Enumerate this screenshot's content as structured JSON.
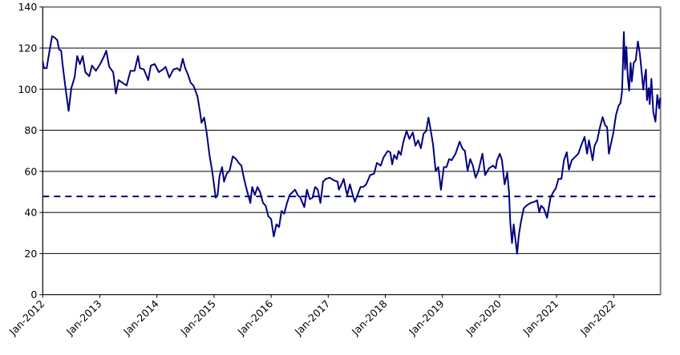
{
  "chart_data": {
    "type": "line",
    "title": "",
    "xlabel": "",
    "ylabel": "",
    "ylim": [
      0,
      140
    ],
    "xlim": [
      "2012-01-01",
      "2022-10-26"
    ],
    "y_ticks": [
      "0",
      "20",
      "40",
      "60",
      "80",
      "100",
      "120",
      "140"
    ],
    "x_ticks": [
      "Jan-2012",
      "Jan-2013",
      "Jan-2014",
      "Jan-2015",
      "Jan-2016",
      "Jan-2017",
      "Jan-2018",
      "Jan-2019",
      "Jan-2020",
      "Jan-2021",
      "Jan-2022"
    ],
    "grid": "horizontal",
    "legend": "none",
    "line_color": "#000080",
    "reference_line": {
      "value": 47.8,
      "style": "dashed",
      "color": "#000080"
    },
    "series": [
      {
        "x": [
          "2012-01-01",
          "2012-01-09",
          "2012-01-26",
          "2012-02-12",
          "2012-03-01",
          "2012-03-16",
          "2012-04-03",
          "2012-04-15",
          "2012-04-28",
          "2012-05-07",
          "2012-05-24",
          "2012-06-15",
          "2012-07-02",
          "2012-07-23",
          "2012-08-09",
          "2012-08-26",
          "2012-09-13",
          "2012-09-30",
          "2012-10-25",
          "2012-11-12",
          "2012-12-07",
          "2013-01-03",
          "2013-01-28",
          "2013-02-11",
          "2013-03-02",
          "2013-03-27",
          "2013-04-14",
          "2013-05-01",
          "2013-05-26",
          "2013-06-21",
          "2013-07-16",
          "2013-08-11",
          "2013-09-02",
          "2013-09-15",
          "2013-10-10",
          "2013-11-06",
          "2013-11-23",
          "2013-12-18",
          "2014-01-13",
          "2014-02-08",
          "2014-02-25",
          "2014-03-21",
          "2014-04-16",
          "2014-05-11",
          "2014-05-28",
          "2014-06-15",
          "2014-07-01",
          "2014-07-19",
          "2014-08-05",
          "2014-08-22",
          "2014-09-17",
          "2014-10-04",
          "2014-10-13",
          "2014-10-30",
          "2014-11-16",
          "2014-12-03",
          "2014-12-20",
          "2015-01-12",
          "2015-01-24",
          "2015-02-05",
          "2015-02-22",
          "2015-03-06",
          "2015-03-23",
          "2015-04-10",
          "2015-05-01",
          "2015-05-22",
          "2015-06-08",
          "2015-06-25",
          "2015-07-12",
          "2015-07-29",
          "2015-08-21",
          "2015-09-02",
          "2015-09-19",
          "2015-10-06",
          "2015-10-23",
          "2015-11-10",
          "2015-11-27",
          "2015-12-14",
          "2016-01-01",
          "2016-01-18",
          "2016-02-04",
          "2016-02-21",
          "2016-03-08",
          "2016-03-25",
          "2016-04-12",
          "2016-04-29",
          "2016-05-16",
          "2016-06-02",
          "2016-06-19",
          "2016-07-06",
          "2016-08-01",
          "2016-08-18",
          "2016-09-05",
          "2016-09-22",
          "2016-10-09",
          "2016-10-26",
          "2016-11-12",
          "2016-11-29",
          "2016-12-16",
          "2017-01-11",
          "2017-02-06",
          "2017-03-02",
          "2017-03-10",
          "2017-03-27",
          "2017-04-10",
          "2017-04-24",
          "2017-05-03",
          "2017-05-20",
          "2017-06-07",
          "2017-06-20",
          "2017-07-07",
          "2017-07-27",
          "2017-08-14",
          "2017-09-01",
          "2017-09-26",
          "2017-10-21",
          "2017-11-08",
          "2017-12-03",
          "2017-12-20",
          "2018-01-16",
          "2018-02-02",
          "2018-02-14",
          "2018-02-27",
          "2018-03-15",
          "2018-03-27",
          "2018-04-10",
          "2018-04-27",
          "2018-05-17",
          "2018-06-04",
          "2018-06-26",
          "2018-07-13",
          "2018-07-30",
          "2018-08-16",
          "2018-09-03",
          "2018-09-20",
          "2018-10-04",
          "2018-10-16",
          "2018-11-02",
          "2018-11-19",
          "2018-12-06",
          "2018-12-23",
          "2019-01-10",
          "2019-01-27",
          "2019-02-13",
          "2019-03-01",
          "2019-03-26",
          "2019-04-21",
          "2019-05-08",
          "2019-05-25",
          "2019-06-11",
          "2019-06-28",
          "2019-07-15",
          "2019-08-01",
          "2019-08-19",
          "2019-09-14",
          "2019-10-01",
          "2019-10-26",
          "2019-11-21",
          "2019-12-08",
          "2019-12-16",
          "2020-01-03",
          "2020-01-17",
          "2020-02-03",
          "2020-02-20",
          "2020-03-02",
          "2020-03-10",
          "2020-03-21",
          "2020-04-01",
          "2020-04-11",
          "2020-04-23",
          "2020-05-04",
          "2020-05-18",
          "2020-06-04",
          "2020-06-21",
          "2020-07-17",
          "2020-08-12",
          "2020-08-29",
          "2020-09-12",
          "2020-09-24",
          "2020-10-11",
          "2020-11-01",
          "2020-11-23",
          "2020-12-10",
          "2020-12-27",
          "2021-01-13",
          "2021-02-01",
          "2021-02-17",
          "2021-03-07",
          "2021-03-21",
          "2021-04-08",
          "2021-04-25",
          "2021-05-20",
          "2021-06-07",
          "2021-06-29",
          "2021-07-15",
          "2021-07-27",
          "2021-08-19",
          "2021-09-01",
          "2021-09-18",
          "2021-10-04",
          "2021-10-22",
          "2021-11-08",
          "2021-11-20",
          "2021-12-01",
          "2021-12-12",
          "2021-12-29",
          "2022-01-16",
          "2022-02-02",
          "2022-02-14",
          "2022-02-24",
          "2022-03-07",
          "2022-03-15",
          "2022-03-23",
          "2022-04-01",
          "2022-04-10",
          "2022-04-19",
          "2022-04-27",
          "2022-05-09",
          "2022-05-22",
          "2022-06-05",
          "2022-06-17",
          "2022-06-29",
          "2022-07-09",
          "2022-07-18",
          "2022-07-26",
          "2022-08-02",
          "2022-08-13",
          "2022-08-19",
          "2022-08-30",
          "2022-09-11",
          "2022-09-25",
          "2022-10-07",
          "2022-10-19",
          "2022-10-26"
        ],
        "y": [
          113.5,
          110.2,
          110.2,
          118.0,
          125.8,
          125.2,
          123.9,
          119.3,
          118.7,
          112.2,
          101.8,
          89.4,
          100.5,
          105.7,
          116.1,
          112.2,
          116.1,
          108.3,
          106.3,
          111.5,
          108.9,
          112.2,
          116.1,
          118.7,
          110.9,
          108.3,
          97.9,
          104.4,
          103.1,
          101.8,
          108.9,
          108.9,
          116.1,
          110.2,
          109.6,
          104.4,
          111.5,
          112.2,
          108.3,
          109.6,
          110.9,
          105.7,
          109.6,
          110.2,
          108.9,
          114.8,
          110.2,
          107.0,
          103.1,
          101.8,
          96.6,
          88.8,
          83.6,
          86.2,
          78.4,
          68.0,
          60.2,
          47.2,
          48.5,
          57.6,
          62.1,
          55.0,
          58.9,
          60.2,
          67.3,
          66.0,
          64.1,
          62.8,
          56.3,
          51.1,
          44.6,
          52.4,
          48.5,
          52.4,
          49.8,
          44.6,
          43.3,
          38.1,
          36.8,
          28.3,
          34.2,
          32.9,
          40.7,
          39.4,
          44.6,
          48.5,
          49.8,
          51.1,
          48.5,
          47.2,
          42.6,
          51.1,
          46.5,
          47.2,
          52.4,
          51.1,
          44.6,
          55.0,
          56.3,
          56.9,
          55.6,
          55.0,
          51.1,
          53.7,
          56.3,
          51.1,
          48.5,
          53.7,
          48.5,
          45.2,
          48.5,
          52.4,
          52.4,
          53.7,
          58.2,
          58.9,
          64.1,
          62.8,
          66.7,
          69.9,
          69.3,
          63.4,
          68.0,
          66.0,
          69.9,
          68.0,
          74.5,
          79.7,
          75.8,
          79.0,
          72.5,
          75.1,
          71.2,
          78.4,
          79.7,
          86.2,
          81.0,
          73.2,
          60.2,
          62.1,
          51.1,
          62.1,
          62.1,
          66.0,
          65.4,
          68.6,
          74.5,
          71.2,
          69.9,
          60.2,
          66.0,
          62.8,
          56.9,
          60.2,
          68.6,
          58.2,
          61.5,
          62.8,
          61.5,
          65.4,
          68.6,
          65.4,
          53.7,
          59.4,
          49.8,
          35.5,
          25.1,
          34.2,
          27.7,
          19.9,
          29.0,
          35.5,
          42.0,
          43.3,
          44.6,
          45.2,
          45.9,
          40.0,
          43.3,
          42.0,
          37.4,
          47.2,
          49.8,
          51.7,
          56.3,
          56.3,
          65.4,
          69.3,
          60.8,
          65.4,
          66.7,
          68.6,
          72.5,
          76.8,
          68.6,
          75.1,
          65.4,
          72.5,
          75.1,
          81.0,
          86.4,
          82.3,
          81.6,
          68.6,
          72.5,
          78.4,
          87.5,
          92.0,
          93.3,
          99.2,
          127.8,
          109.6,
          120.6,
          105.7,
          99.2,
          112.8,
          103.7,
          112.8,
          114.1,
          123.2,
          117.4,
          108.3,
          99.8,
          105.7,
          109.6,
          94.6,
          100.5,
          92.7,
          105.0,
          88.8,
          84.2,
          97.2,
          90.7,
          95.9
        ]
      }
    ]
  }
}
